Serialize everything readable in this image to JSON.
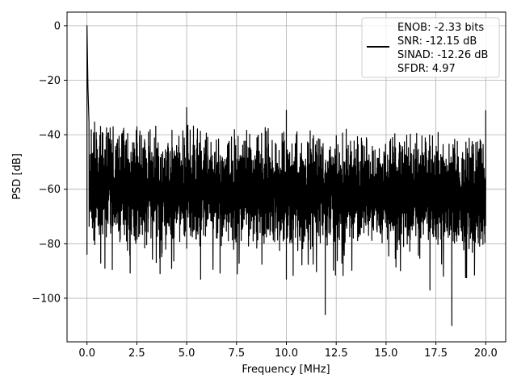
{
  "chart_data": {
    "type": "line",
    "title": "",
    "xlabel": "Frequency [MHz]",
    "ylabel": "PSD [dB]",
    "xlim": [
      -1.0,
      21.0
    ],
    "ylim": [
      -116,
      5
    ],
    "xticks": [
      0.0,
      2.5,
      5.0,
      7.5,
      10.0,
      12.5,
      15.0,
      17.5,
      20.0
    ],
    "xtick_labels": [
      "0.0",
      "2.5",
      "5.0",
      "7.5",
      "10.0",
      "12.5",
      "15.0",
      "17.5",
      "20.0"
    ],
    "yticks": [
      0,
      -20,
      -40,
      -60,
      -80,
      -100
    ],
    "ytick_labels": [
      "0",
      "−20",
      "−40",
      "−60",
      "−80",
      "−100"
    ],
    "grid": true,
    "line_color": "#000000",
    "legend": {
      "placement": "top-right",
      "entries": [
        "ENOB: -2.33 bits",
        "SNR: -12.15 dB",
        "SINAD: -12.26 dB",
        "SFDR: 4.97"
      ]
    },
    "series": [
      {
        "description": "noisy power spectral density; dense noise band with upper envelope falling from about -34 dB to -38 dB and lower envelope near -78 dB, peak at DC",
        "dc_peak": {
          "x": 0.0,
          "y": 0.0
        },
        "noise_upper_envelope": [
          {
            "x": 0.1,
            "y": -33
          },
          {
            "x": 5.0,
            "y": -35
          },
          {
            "x": 10.0,
            "y": -36
          },
          {
            "x": 15.0,
            "y": -37
          },
          {
            "x": 20.0,
            "y": -38
          }
        ],
        "noise_lower_envelope": [
          {
            "x": 0.1,
            "y": -77
          },
          {
            "x": 10.0,
            "y": -78
          },
          {
            "x": 20.0,
            "y": -79
          }
        ],
        "notable_peaks": [
          {
            "x": 0.05,
            "y": -23
          },
          {
            "x": 5.0,
            "y": -30
          },
          {
            "x": 10.0,
            "y": -31
          },
          {
            "x": 20.0,
            "y": -31
          }
        ],
        "notable_dips": [
          {
            "x": 0.9,
            "y": -89
          },
          {
            "x": 5.7,
            "y": -93
          },
          {
            "x": 10.0,
            "y": -93
          },
          {
            "x": 11.95,
            "y": -106
          },
          {
            "x": 17.2,
            "y": -97
          },
          {
            "x": 18.3,
            "y": -110
          }
        ]
      }
    ]
  }
}
